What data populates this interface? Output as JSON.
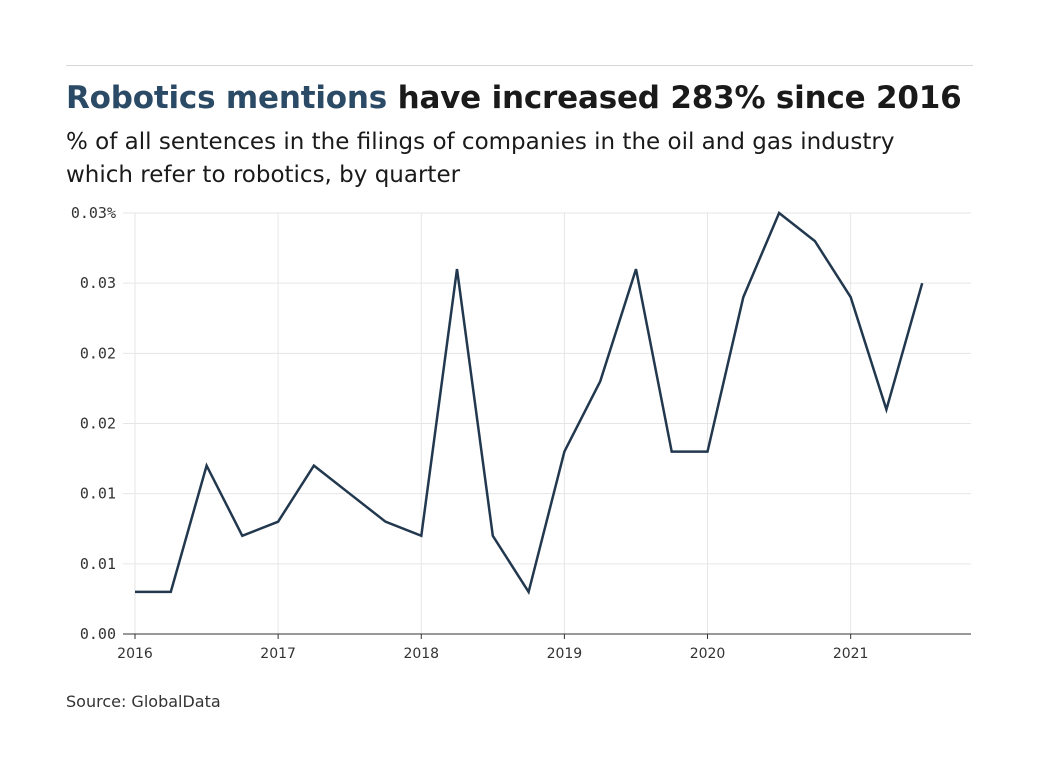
{
  "title": {
    "highlight": "Robotics mentions",
    "rest": " have increased 283% since 2016"
  },
  "subtitle": "% of all sentences in the filings of companies in the oil and gas industry which refer to robotics, by quarter",
  "source": "Source: GlobalData",
  "colors": {
    "line": "#22384e",
    "title_highlight": "#2b4a66",
    "grid": "#e6e6e6",
    "axis": "#333333"
  },
  "chart_data": {
    "type": "line",
    "title": "Robotics mentions have increased 283% since 2016",
    "subtitle": "% of all sentences in the filings of companies in the oil and gas industry which refer to robotics, by quarter",
    "xlabel": "",
    "ylabel": "",
    "grid": true,
    "xlim": [
      2016.0,
      2021.75
    ],
    "ylim": [
      0,
      0.03
    ],
    "y_ticks": [
      {
        "value": 0.0,
        "label": "0.00"
      },
      {
        "value": 0.005,
        "label": "0.01"
      },
      {
        "value": 0.01,
        "label": "0.01"
      },
      {
        "value": 0.015,
        "label": "0.02"
      },
      {
        "value": 0.02,
        "label": "0.02"
      },
      {
        "value": 0.025,
        "label": "0.03"
      },
      {
        "value": 0.03,
        "label": "0.03%"
      }
    ],
    "x_ticks": [
      {
        "value": 2016,
        "label": "2016"
      },
      {
        "value": 2017,
        "label": "2017"
      },
      {
        "value": 2018,
        "label": "2018"
      },
      {
        "value": 2019,
        "label": "2019"
      },
      {
        "value": 2020,
        "label": "2020"
      },
      {
        "value": 2021,
        "label": "2021"
      }
    ],
    "series": [
      {
        "x": [
          2016.0,
          2016.25,
          2016.5,
          2016.75,
          2017.0,
          2017.25,
          2017.5,
          2017.75,
          2018.0,
          2018.25,
          2018.5,
          2018.75,
          2019.0,
          2019.25,
          2019.5,
          2019.75,
          2020.0,
          2020.25,
          2020.5,
          2020.75,
          2021.0,
          2021.25,
          2021.5
        ],
        "values": [
          0.003,
          0.003,
          0.012,
          0.007,
          0.008,
          0.012,
          0.01,
          0.008,
          0.007,
          0.026,
          0.007,
          0.003,
          0.013,
          0.018,
          0.026,
          0.013,
          0.013,
          0.024,
          0.03,
          0.028,
          0.024,
          0.016,
          0.025
        ]
      }
    ]
  }
}
